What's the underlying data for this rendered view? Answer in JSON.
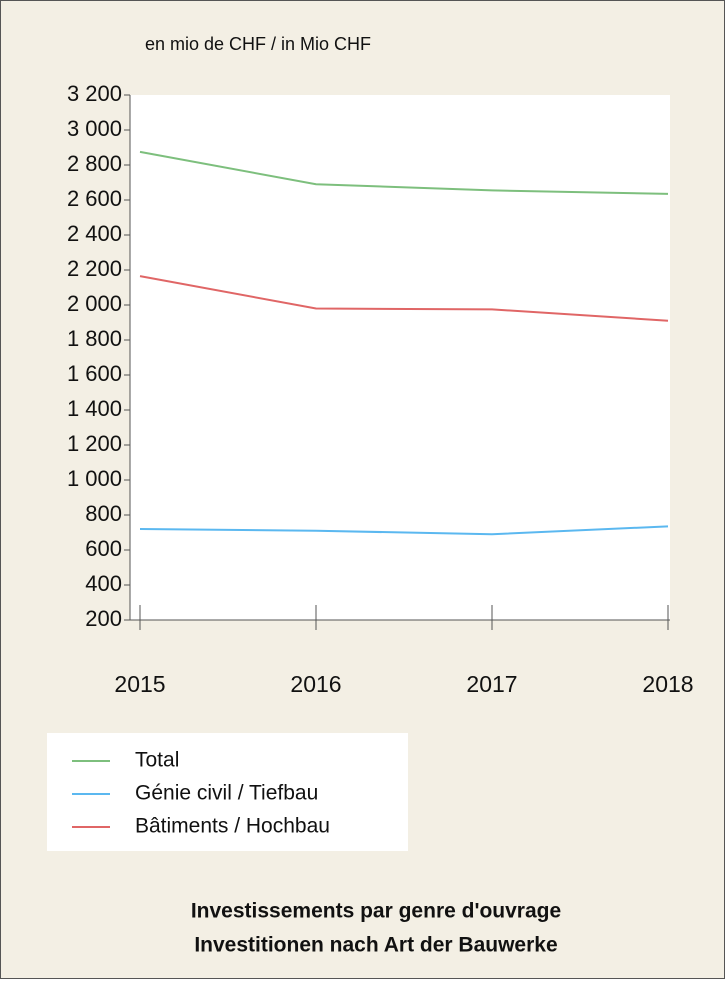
{
  "chart_data": {
    "type": "line",
    "title": "Investissements par genre d'ouvrage",
    "subtitle": "Investitionen nach Art der Bauwerke",
    "y_label": "en mio de CHF / in Mio CHF",
    "x": [
      "2015",
      "2016",
      "2017",
      "2018"
    ],
    "series": [
      {
        "name": "Total",
        "color": "#7dbf7d",
        "values": [
          2875,
          2690,
          2655,
          2635
        ]
      },
      {
        "name": "Génie civil / Tiefbau",
        "color": "#5bb8f0",
        "values": [
          720,
          710,
          690,
          735
        ]
      },
      {
        "name": "Bâtiments / Hochbau",
        "color": "#e06666",
        "values": [
          2165,
          1980,
          1975,
          1910
        ]
      }
    ],
    "ylim": [
      200,
      3200
    ],
    "yticks": [
      200,
      400,
      600,
      800,
      {
        "value": 1000,
        "label": "1 000"
      },
      {
        "value": 1200,
        "label": "1 200"
      },
      {
        "value": 1400,
        "label": "1 400"
      },
      {
        "value": 1600,
        "label": "1 600"
      },
      {
        "value": 1800,
        "label": "1 800"
      },
      {
        "value": 2000,
        "label": "2 000"
      },
      {
        "value": 2200,
        "label": "2 200"
      },
      {
        "value": 2400,
        "label": "2 400"
      },
      {
        "value": 2600,
        "label": "2 600"
      },
      {
        "value": 2800,
        "label": "2 800"
      },
      {
        "value": 3000,
        "label": "3 000"
      },
      {
        "value": 3200,
        "label": "3 200"
      }
    ],
    "grid": false,
    "legend": "bottom-left"
  }
}
